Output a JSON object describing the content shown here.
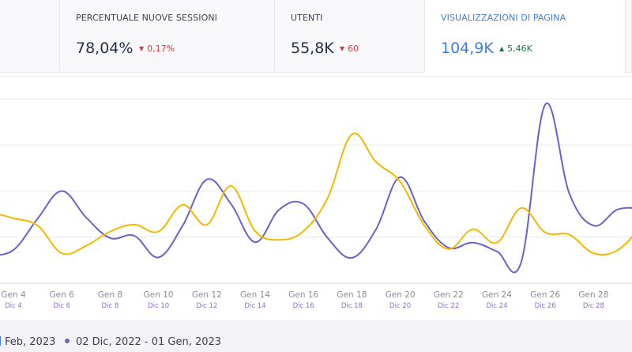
{
  "kpis": [
    {
      "label": "",
      "value": "",
      "delta": "",
      "direction": "none"
    },
    {
      "label": "PERCENTUALE NUOVE SESSIONI",
      "value": "78,04%",
      "delta": "0,17%",
      "direction": "down"
    },
    {
      "label": "UTENTI",
      "value": "55,8K",
      "delta": "60",
      "direction": "down"
    },
    {
      "label": "VISUALIZZAZIONI DI PAGINA",
      "value": "104,9K",
      "delta": "5,46K",
      "direction": "up",
      "active": true
    }
  ],
  "legend": {
    "current": "Feb, 2023",
    "previous": "02 Dic, 2022 - 01 Gen, 2023"
  },
  "colors": {
    "current": "#f5b800",
    "previous": "#6a62cc",
    "accent": "#3f7fd9",
    "down": "#d83a3a",
    "up": "#1f7a45"
  },
  "chart_data": {
    "type": "line",
    "title": "",
    "xlabel": "",
    "ylabel": "",
    "grid": true,
    "legend_position": "bottom",
    "ylim": [
      0,
      4
    ],
    "x": [
      3,
      4,
      5,
      6,
      7,
      8,
      9,
      10,
      11,
      12,
      13,
      14,
      15,
      16,
      17,
      18,
      19,
      20,
      21,
      22,
      23,
      24,
      25,
      26,
      27,
      28,
      29,
      30
    ],
    "tick_labels_main": [
      "Gen 4",
      "Gen 6",
      "Gen 8",
      "Gen 10",
      "Gen 12",
      "Gen 14",
      "Gen 16",
      "Gen 18",
      "Gen 20",
      "Gen 22",
      "Gen 24",
      "Gen 26",
      "Gen 28",
      "G"
    ],
    "tick_labels_sub": [
      "Dic 4",
      "Dic 6",
      "Dic 8",
      "Dic 10",
      "Dic 12",
      "Dic 14",
      "Dic 16",
      "Dic 18",
      "Dic 20",
      "Dic 22",
      "Dic 24",
      "Dic 26",
      "Dic 28",
      "D"
    ],
    "series": [
      {
        "name": "Feb, 2023",
        "color": "#f5b800",
        "values": [
          1.55,
          1.41,
          1.25,
          0.65,
          0.81,
          1.12,
          1.27,
          1.12,
          1.7,
          1.27,
          2.11,
          1.13,
          0.94,
          1.13,
          1.85,
          3.23,
          2.63,
          2.2,
          1.25,
          0.74,
          1.17,
          0.88,
          1.63,
          1.1,
          1.05,
          0.65,
          0.72,
          1.25
        ]
      },
      {
        "name": "02 Dic, 2022 - 01 Gen, 2023",
        "color": "#6a62cc",
        "values": [
          0.6,
          0.72,
          1.4,
          2.0,
          1.43,
          0.98,
          1.03,
          0.56,
          1.25,
          2.25,
          1.72,
          0.89,
          1.6,
          1.72,
          0.98,
          0.55,
          1.17,
          2.3,
          1.34,
          0.77,
          0.88,
          0.69,
          0.45,
          3.88,
          1.94,
          1.25,
          1.6,
          1.62
        ]
      }
    ]
  }
}
